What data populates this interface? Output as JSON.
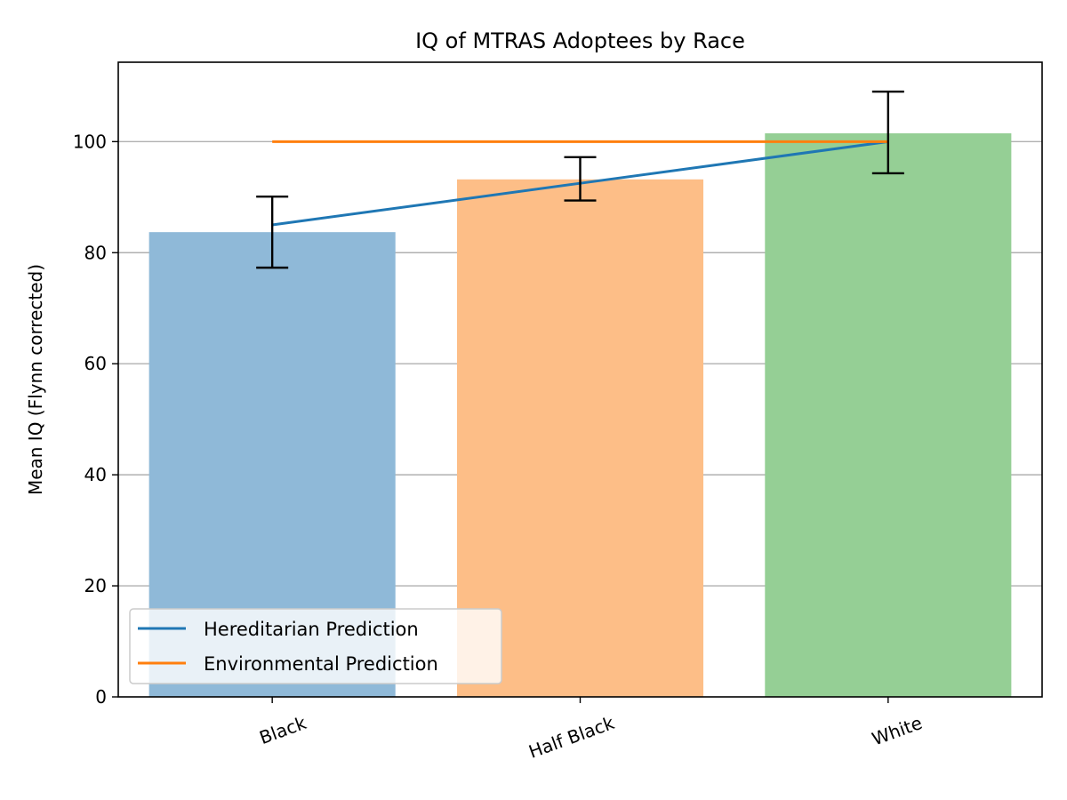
{
  "chart_data": {
    "type": "bar",
    "title": "IQ of MTRAS Adoptees by Race",
    "xlabel": "",
    "ylabel": "Mean IQ (Flynn corrected)",
    "categories": [
      "Black",
      "Half Black",
      "White"
    ],
    "values": [
      83.7,
      93.2,
      101.5
    ],
    "error_low": [
      77.3,
      89.4,
      94.3
    ],
    "error_high": [
      90.1,
      97.2,
      109.0
    ],
    "bar_colors": [
      "#8fb9d8",
      "#fdbe87",
      "#95cf95"
    ],
    "ylim": [
      0,
      114.3
    ],
    "yticks": [
      0,
      20,
      40,
      60,
      80,
      100
    ],
    "xtick_rotation": -20,
    "grid": "y",
    "series": [
      {
        "name": "Hereditarian Prediction",
        "color": "#1f77b4",
        "values": [
          85,
          92.5,
          100
        ]
      },
      {
        "name": "Environmental Prediction",
        "color": "#ff7f0e",
        "values": [
          100,
          100,
          100
        ]
      }
    ],
    "legend": {
      "position": "lower-left"
    }
  }
}
